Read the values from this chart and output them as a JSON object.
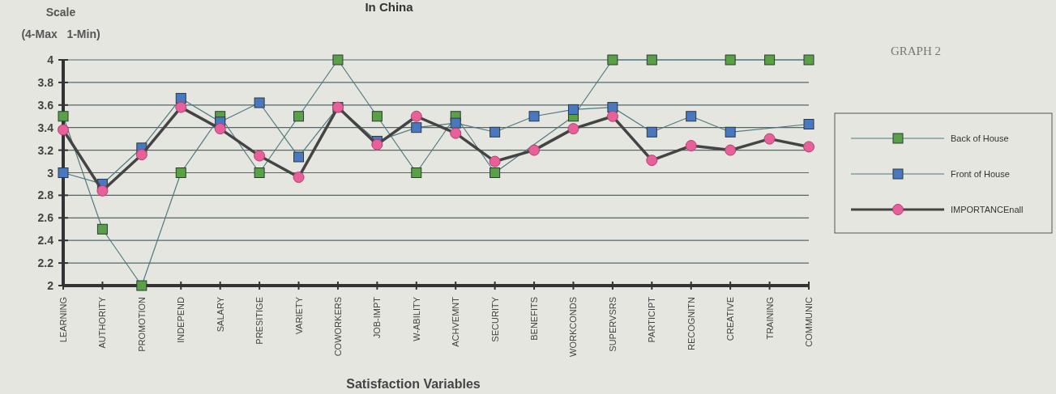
{
  "chart_data": {
    "type": "line",
    "title": "In China",
    "xlabel": "Satisfaction Variables",
    "ylabel": "Scale\n(4-Max   1-Min)",
    "annotations": [
      "GRAPH 2"
    ],
    "categories": [
      "LEARNING",
      "AUTHORITY",
      "PROMOTION",
      "INDEPEND",
      "SALARY",
      "PRESITIGE",
      "VARIETY",
      "COWORKERS",
      "JOB-IMPT",
      "W-ABILITY",
      "ACHVEMNT",
      "SECURITY",
      "BENEFITS",
      "WORKCONDS",
      "SUPERVSRS",
      "PARTICIPT",
      "RECOGNITN",
      "CREATIVE",
      "TRAINING",
      "COMMUNIC"
    ],
    "series": [
      {
        "name": "Back of House",
        "color": "#5aa046",
        "values": [
          3.5,
          2.5,
          2,
          3,
          3.5,
          3,
          3.5,
          4,
          3.5,
          3,
          3.5,
          3,
          null,
          3.5,
          4,
          4,
          null,
          4,
          4,
          4
        ]
      },
      {
        "name": "Front of House",
        "color": "#4a78c0",
        "values": [
          3.0,
          2.9,
          3.22,
          3.66,
          3.45,
          3.62,
          3.14,
          3.58,
          3.28,
          3.4,
          3.44,
          3.36,
          3.5,
          3.56,
          3.58,
          3.36,
          3.5,
          3.36,
          null,
          3.43
        ]
      },
      {
        "name": "IMPORTANCEnall",
        "color": "#e8609a",
        "marker": "circle",
        "values": [
          3.38,
          2.84,
          3.16,
          3.58,
          3.39,
          3.15,
          2.96,
          3.58,
          3.25,
          3.5,
          3.35,
          3.1,
          3.2,
          3.39,
          3.5,
          3.11,
          3.24,
          3.2,
          3.3,
          3.23
        ]
      }
    ],
    "marker": "square",
    "ylim": [
      2,
      4
    ],
    "yticks": [
      2,
      2.2,
      2.4,
      2.6,
      2.8,
      3,
      3.2,
      3.4,
      3.6,
      3.8,
      4
    ],
    "grid": "y",
    "legend": "right"
  }
}
